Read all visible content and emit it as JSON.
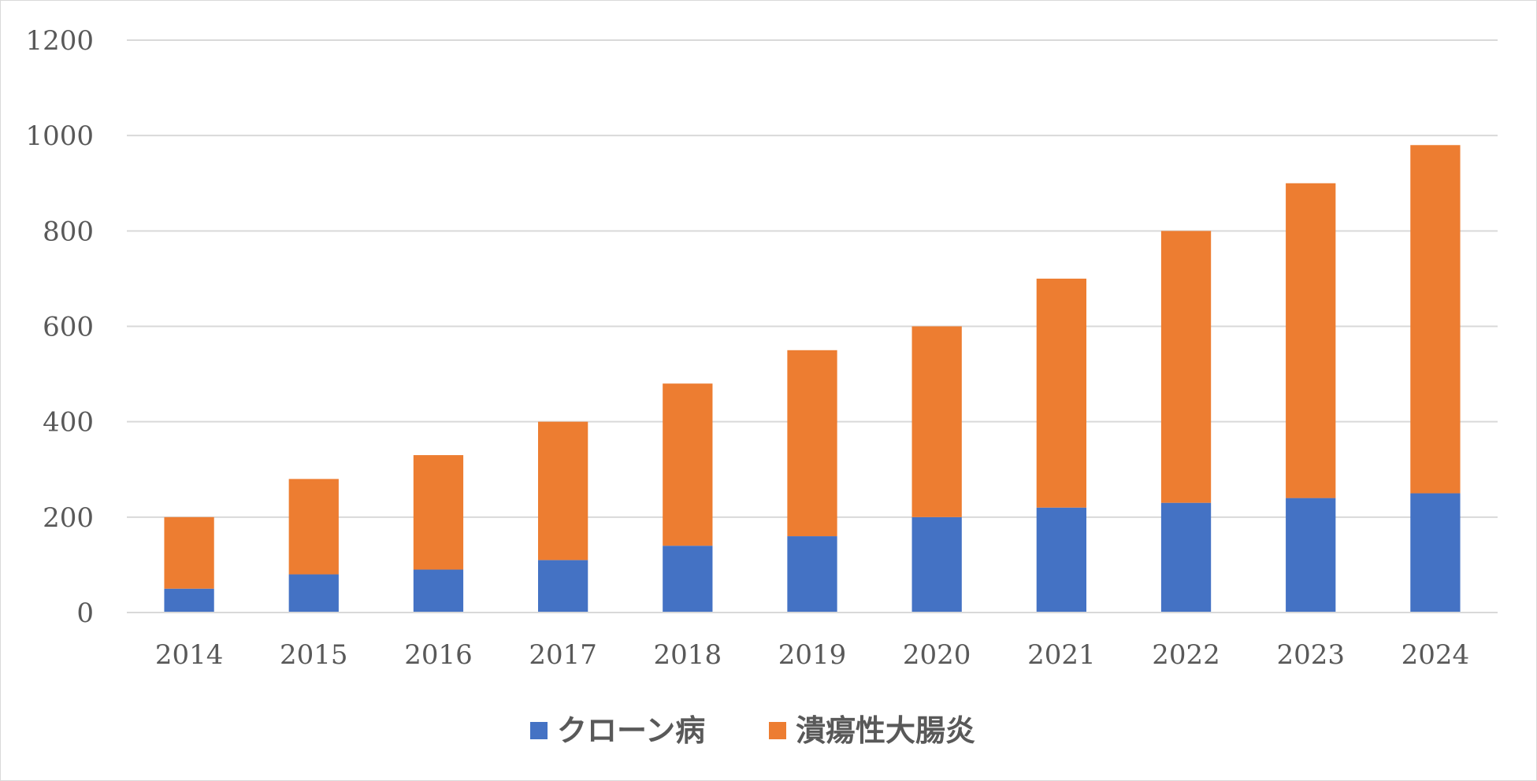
{
  "chart_data": {
    "type": "bar",
    "stacked": true,
    "categories": [
      "2014",
      "2015",
      "2016",
      "2017",
      "2018",
      "2019",
      "2020",
      "2021",
      "2022",
      "2023",
      "2024"
    ],
    "series": [
      {
        "name": "クローン病",
        "color": "#4472c4",
        "values": [
          50,
          80,
          90,
          110,
          140,
          160,
          200,
          220,
          230,
          240,
          250
        ]
      },
      {
        "name": "潰瘍性大腸炎",
        "color": "#ed7d31",
        "values": [
          150,
          200,
          240,
          290,
          340,
          390,
          400,
          480,
          570,
          660,
          730
        ]
      }
    ],
    "ylim": [
      0,
      1200
    ],
    "yticks": [
      "0",
      "200",
      "400",
      "600",
      "800",
      "1000",
      "1200"
    ],
    "grid": true,
    "legend_position": "bottom",
    "title": "",
    "xlabel": "",
    "ylabel": ""
  }
}
